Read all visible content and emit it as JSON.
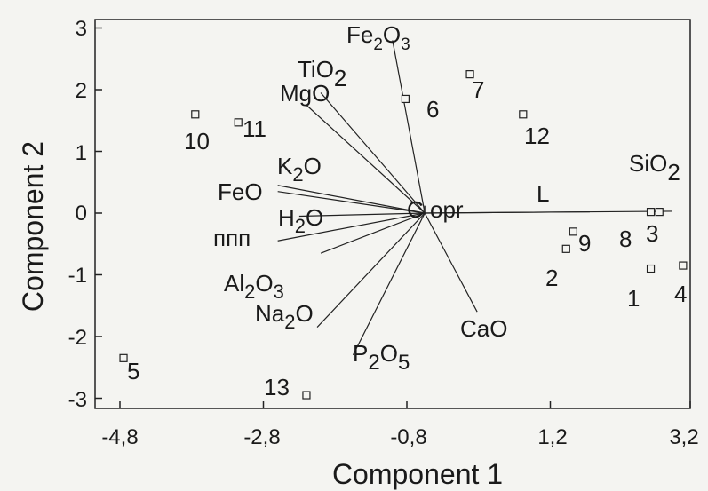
{
  "chart_data": {
    "type": "scatter",
    "subtype": "biplot",
    "xlabel": "Component 1",
    "ylabel": "Component 2",
    "xlim": [
      -5.0,
      3.3
    ],
    "ylim": [
      -3.2,
      3.2
    ],
    "xticks": [
      -4.8,
      -2.8,
      -0.8,
      1.2,
      3.2
    ],
    "xtick_labels": [
      "-4,8",
      "-2,8",
      "-0,8",
      "1,2",
      "3,2"
    ],
    "yticks": [
      -3,
      -2,
      -1,
      0,
      1,
      2,
      3
    ],
    "ytick_labels": [
      "-3",
      "-2",
      "-1",
      "0",
      "1",
      "2",
      "3"
    ],
    "grid": false,
    "points": [
      {
        "label": "1",
        "x": 2.6,
        "y": -0.9
      },
      {
        "label": "2",
        "x": 1.42,
        "y": -0.58
      },
      {
        "label": "3",
        "x": 2.72,
        "y": 0.02
      },
      {
        "label": "4",
        "x": 3.05,
        "y": -0.85
      },
      {
        "label": "5",
        "x": -4.75,
        "y": -2.35
      },
      {
        "label": "6",
        "x": -0.82,
        "y": 1.85
      },
      {
        "label": "7",
        "x": 0.08,
        "y": 2.25
      },
      {
        "label": "8",
        "x": 2.6,
        "y": 0.02
      },
      {
        "label": "9",
        "x": 1.52,
        "y": -0.3
      },
      {
        "label": "10",
        "x": -3.75,
        "y": 1.6
      },
      {
        "label": "11",
        "x": -3.15,
        "y": 1.47
      },
      {
        "label": "12",
        "x": 0.82,
        "y": 1.6
      },
      {
        "label": "13",
        "x": -2.2,
        "y": -2.95
      }
    ],
    "vectors": [
      {
        "label": "Fe2O3",
        "x": -1.0,
        "y": 2.8
      },
      {
        "label": "TiO2",
        "x": -2.0,
        "y": 1.95
      },
      {
        "label": "MgO",
        "x": -2.2,
        "y": 1.75
      },
      {
        "label": "K2O",
        "x": -2.6,
        "y": 0.45
      },
      {
        "label": "FeO",
        "x": -2.6,
        "y": 0.35
      },
      {
        "label": "H2O",
        "x": -2.3,
        "y": -0.05
      },
      {
        "label": "ппп",
        "x": -2.6,
        "y": -0.45
      },
      {
        "label": "Al2O3",
        "x": -2.0,
        "y": -0.65
      },
      {
        "label": "Na2O",
        "x": -2.05,
        "y": -1.85
      },
      {
        "label": "P2O5",
        "x": -1.55,
        "y": -2.3
      },
      {
        "label": "CaO",
        "x": 0.18,
        "y": -1.6
      },
      {
        "label": "SiO2",
        "x": 2.9,
        "y": 0.03
      },
      {
        "label": "C opr",
        "x": -0.55,
        "y": 0.12
      },
      {
        "label": "L",
        "x": 1.75,
        "y": 0.02
      }
    ]
  },
  "labels": {
    "xlabel": "Component 1",
    "ylabel": "Component 2",
    "xticks": [
      "-4,8",
      "-2,8",
      "-0,8",
      "1,2",
      "3,2"
    ],
    "yticks": [
      "3",
      "2",
      "1",
      "0",
      "-1",
      "-2",
      "-3"
    ],
    "points": [
      "1",
      "2",
      "3",
      "4",
      "5",
      "6",
      "7",
      "8",
      "9",
      "10",
      "11",
      "12",
      "13"
    ],
    "vectors": {
      "fe2o3": {
        "a": "Fe",
        "s": "2",
        "b": "O",
        "t": "3"
      },
      "tio2": {
        "a": "TiO",
        "s": "2"
      },
      "mgo": "MgO",
      "k2o": {
        "a": "K",
        "s": "2",
        "b": "O"
      },
      "feo": "FeO",
      "h2o": {
        "a": "H",
        "s": "2",
        "b": "O"
      },
      "ppp": "ппп",
      "al2o3": {
        "a": "Al",
        "s": "2",
        "b": "O",
        "t": "3"
      },
      "na2o": {
        "a": "Na",
        "s": "2",
        "b": "O"
      },
      "p2o5": {
        "a": "P",
        "s": "2",
        "b": "O",
        "t": "5"
      },
      "cao": "CaO",
      "sio2": {
        "a": "SiO",
        "s": "2"
      },
      "copr": "C opr",
      "l": "L"
    }
  }
}
